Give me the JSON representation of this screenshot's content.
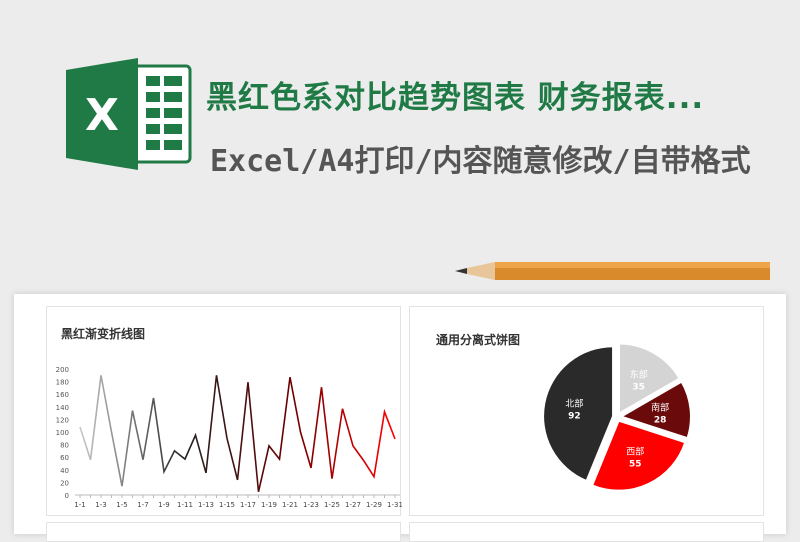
{
  "header": {
    "title": "黑红色系对比趋势图表 财务报表...",
    "subtitle": "Excel/A4打印/内容随意修改/自带格式",
    "logo_letter": "X"
  },
  "colors": {
    "brand_green": "#1f7a45",
    "title_green": "#1f7a45"
  },
  "chart_data": [
    {
      "type": "line",
      "title": "黑红渐变折线图",
      "categories": [
        "1-1",
        "1-2",
        "1-3",
        "1-4",
        "1-5",
        "1-6",
        "1-7",
        "1-8",
        "1-9",
        "1-10",
        "1-11",
        "1-12",
        "1-13",
        "1-14",
        "1-15",
        "1-16",
        "1-17",
        "1-18",
        "1-19",
        "1-20",
        "1-21",
        "1-22",
        "1-23",
        "1-24",
        "1-25",
        "1-26",
        "1-27",
        "1-28",
        "1-29",
        "1-30",
        "1-31"
      ],
      "tick_labels": [
        "1-1",
        "1-3",
        "1-5",
        "1-7",
        "1-9",
        "1-11",
        "1-13",
        "1-15",
        "1-17",
        "1-19",
        "1-21",
        "1-23",
        "1-25",
        "1-27",
        "1-29",
        "1-31"
      ],
      "values": [
        108,
        56,
        190,
        100,
        14,
        134,
        56,
        154,
        37,
        70,
        57,
        95,
        35,
        190,
        90,
        24,
        179,
        5,
        78,
        57,
        187,
        100,
        43,
        171,
        26,
        137,
        78,
        55,
        29,
        132,
        89
      ],
      "ylim": [
        0,
        200
      ],
      "yticks": [
        0,
        20,
        40,
        60,
        80,
        100,
        120,
        140,
        160,
        180,
        200
      ],
      "gradient": [
        "#c8c8c8",
        "#222222",
        "#6b0000",
        "#ff0000"
      ],
      "grid": false
    },
    {
      "type": "pie",
      "title": "通用分离式饼图",
      "slices": [
        {
          "label": "东部",
          "value": 35,
          "color": "#d4d4d4"
        },
        {
          "label": "南部",
          "value": 28,
          "color": "#6b0a0a"
        },
        {
          "label": "西部",
          "value": 55,
          "color": "#ff0000"
        },
        {
          "label": "北部",
          "value": 92,
          "color": "#2a2a2a"
        }
      ]
    }
  ]
}
